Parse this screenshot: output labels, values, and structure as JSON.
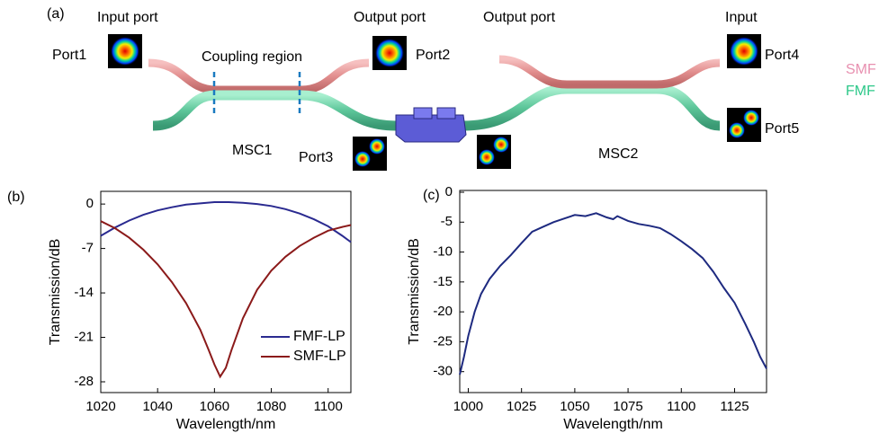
{
  "diagram": {
    "panel_label": "(a)",
    "input_port": "Input port",
    "port1": "Port1",
    "coupling_region": "Coupling region",
    "output_port_1": "Output port",
    "port2": "Port2",
    "output_port_2": "Output port",
    "input": "Input",
    "port4": "Port4",
    "smf": "SMF",
    "fmf": "FMF",
    "port5": "Port5",
    "msc1": "MSC1",
    "port3": "Port3",
    "msc2": "MSC2"
  },
  "chart_data": [
    {
      "type": "line",
      "label": "(b)",
      "xlabel": "Wavelength/nm",
      "ylabel": "Transmission/dB",
      "xlim": [
        1020,
        1108
      ],
      "ylim": [
        -29.7,
        2
      ],
      "xticks": [
        1020,
        1040,
        1060,
        1080,
        1100
      ],
      "yticks": [
        0,
        -7,
        -14,
        -21,
        -28
      ],
      "legend": "lower right",
      "series": [
        {
          "name": "FMF-LP",
          "color": "#2a2a90",
          "x": [
            1020,
            1025,
            1030,
            1035,
            1040,
            1045,
            1050,
            1055,
            1060,
            1065,
            1070,
            1075,
            1080,
            1085,
            1090,
            1095,
            1100,
            1105,
            1108
          ],
          "values": [
            -5.0,
            -3.7,
            -2.6,
            -1.7,
            -1.0,
            -0.5,
            -0.1,
            0.1,
            0.3,
            0.3,
            0.2,
            0.0,
            -0.3,
            -0.8,
            -1.5,
            -2.4,
            -3.5,
            -5.0,
            -6.0
          ]
        },
        {
          "name": "SMF-LP",
          "color": "#8b1a1a",
          "x": [
            1020,
            1025,
            1030,
            1035,
            1040,
            1045,
            1050,
            1055,
            1058,
            1060,
            1062,
            1064,
            1066,
            1070,
            1075,
            1080,
            1085,
            1090,
            1095,
            1100,
            1105,
            1108
          ],
          "values": [
            -2.7,
            -3.8,
            -5.3,
            -7.2,
            -9.5,
            -12.3,
            -15.6,
            -19.8,
            -23.0,
            -25.3,
            -27.2,
            -25.8,
            -23.0,
            -18.0,
            -13.5,
            -10.5,
            -8.3,
            -6.6,
            -5.3,
            -4.2,
            -3.6,
            -3.3
          ]
        }
      ]
    },
    {
      "type": "line",
      "label": "(c)",
      "xlabel": "Wavelength/nm",
      "ylabel": "Transmission/dB",
      "xlim": [
        996,
        1140
      ],
      "ylim": [
        -33.5,
        0.3
      ],
      "xticks": [
        1000,
        1025,
        1050,
        1075,
        1100,
        1125
      ],
      "yticks": [
        0,
        -5,
        -10,
        -15,
        -20,
        -25,
        -30
      ],
      "color": "#1e2a80",
      "x": [
        996,
        998,
        1000,
        1003,
        1006,
        1010,
        1015,
        1020,
        1025,
        1030,
        1035,
        1040,
        1045,
        1050,
        1055,
        1060,
        1065,
        1068,
        1070,
        1075,
        1080,
        1085,
        1090,
        1095,
        1100,
        1105,
        1110,
        1115,
        1120,
        1125,
        1130,
        1134,
        1137,
        1140
      ],
      "values": [
        -30.5,
        -27.5,
        -24.0,
        -20.0,
        -17.0,
        -14.5,
        -12.3,
        -10.5,
        -8.5,
        -6.6,
        -5.8,
        -5.0,
        -4.4,
        -3.8,
        -4.0,
        -3.5,
        -4.2,
        -4.5,
        -4.0,
        -4.8,
        -5.3,
        -5.6,
        -6.0,
        -7.0,
        -8.2,
        -9.5,
        -11.0,
        -13.3,
        -16.0,
        -18.5,
        -22.0,
        -25.0,
        -27.5,
        -29.5
      ]
    }
  ]
}
